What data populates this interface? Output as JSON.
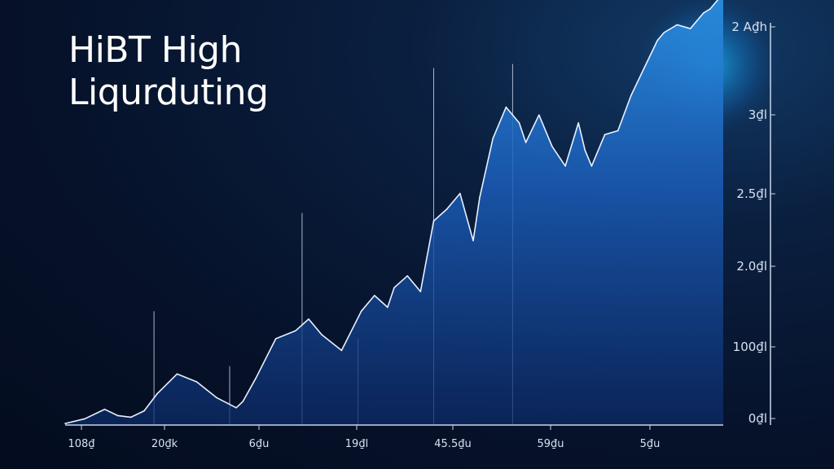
{
  "title_lines": [
    "HiBT High",
    "Liqurduting"
  ],
  "colors": {
    "background": "#061329",
    "line": "#e8f1ff",
    "fill_top": "#2a8fe0",
    "fill_bottom": "#0c2a66",
    "glow": "#19b4f0",
    "axis": "#c9d6e8"
  },
  "chart_data": {
    "type": "area",
    "title": "HiBT High Liqurduting",
    "xlabel": "",
    "ylabel": "",
    "x_tick_labels": [
      "108₫",
      "20₫k",
      "6₫u",
      "19₫l",
      "45.5₫u",
      "59₫u",
      "5₫u"
    ],
    "y_tick_labels": [
      "0₫l",
      "100₫l",
      "2.0₫l",
      "2.5₫l",
      "3₫l",
      "2 A₫h"
    ],
    "y_tick_values": [
      0,
      1,
      2,
      3,
      4,
      5
    ],
    "xlim": [
      0,
      100
    ],
    "ylim": [
      0,
      5
    ],
    "grid": false,
    "legend": "none",
    "x": [
      0,
      3,
      6,
      8,
      10,
      12,
      14,
      17,
      20,
      23,
      26,
      27,
      29,
      32,
      35,
      37,
      39,
      42,
      45,
      47,
      49,
      50,
      52,
      54,
      56,
      58,
      60,
      62,
      63,
      65,
      67,
      69,
      70,
      72,
      74,
      76,
      78,
      79,
      80,
      82,
      84,
      86,
      88,
      90,
      91,
      93,
      95,
      97,
      98,
      100
    ],
    "y": [
      0.02,
      0.08,
      0.2,
      0.12,
      0.1,
      0.18,
      0.4,
      0.65,
      0.55,
      0.35,
      0.22,
      0.3,
      0.6,
      1.1,
      1.2,
      1.35,
      1.15,
      0.95,
      1.45,
      1.65,
      1.5,
      1.75,
      1.9,
      1.7,
      2.6,
      2.75,
      2.95,
      2.35,
      2.9,
      3.65,
      4.05,
      3.85,
      3.6,
      3.95,
      3.55,
      3.3,
      3.85,
      3.5,
      3.3,
      3.7,
      3.75,
      4.2,
      4.55,
      4.9,
      5.0,
      5.1,
      5.05,
      5.25,
      5.3,
      5.5
    ],
    "spikes": [
      {
        "x": 13.5,
        "y": 1.45
      },
      {
        "x": 25.0,
        "y": 0.75
      },
      {
        "x": 36.0,
        "y": 2.7
      },
      {
        "x": 44.5,
        "y": 1.1
      },
      {
        "x": 56.0,
        "y": 4.55
      },
      {
        "x": 68.0,
        "y": 4.6
      }
    ]
  }
}
